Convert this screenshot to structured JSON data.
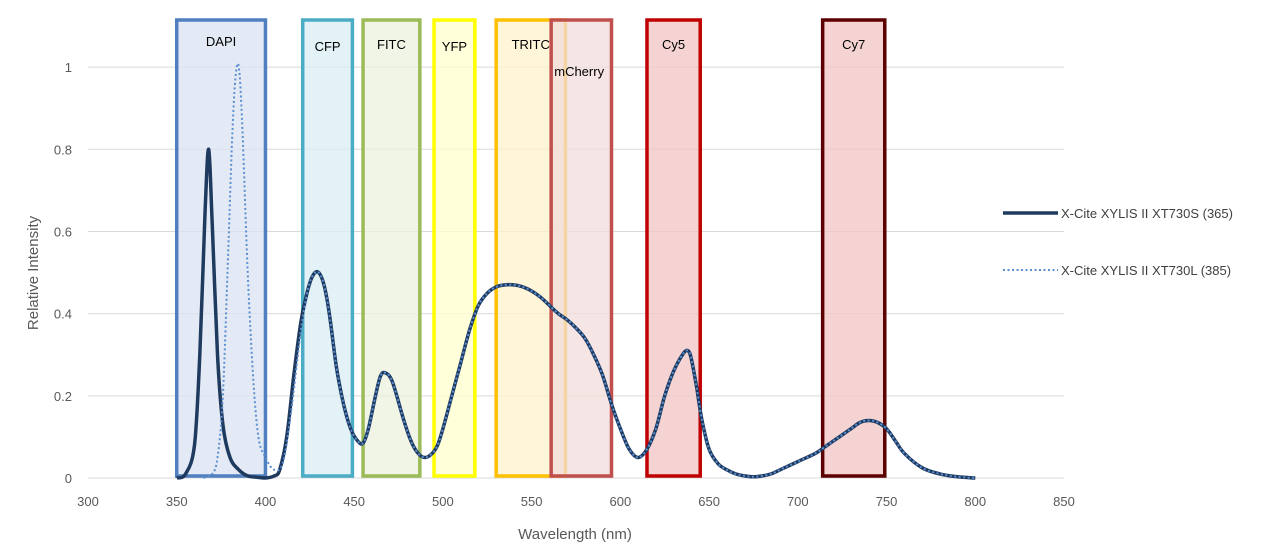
{
  "chart_data": {
    "type": "line",
    "title": "",
    "xlabel": "Wavelength (nm)",
    "ylabel": "Relative Intensity",
    "xlim": [
      300,
      850
    ],
    "ylim": [
      0,
      1.1
    ],
    "xticks": [
      300,
      350,
      400,
      450,
      500,
      550,
      600,
      650,
      700,
      750,
      800,
      850
    ],
    "yticks": [
      0,
      0.2,
      0.4,
      0.6,
      0.8,
      1
    ],
    "ytick_labels": [
      "0",
      "0.2",
      "0.4",
      "0.6",
      "0.8",
      "1"
    ],
    "grid": "horizontal",
    "legend_position": "right",
    "series": [
      {
        "name": "X-Cite XYLIS II XT730S (365)",
        "style": "solid",
        "color": "#1f3a5f",
        "x": [
          350,
          355,
          360,
          363,
          366,
          368,
          370,
          373,
          376,
          380,
          385,
          390,
          395,
          400,
          405,
          408,
          412,
          416,
          420,
          424,
          427,
          430,
          433,
          436,
          440,
          444,
          448,
          452,
          455,
          458,
          462,
          465,
          468,
          471,
          474,
          478,
          482,
          486,
          490,
          494,
          497,
          500,
          505,
          510,
          515,
          520,
          525,
          530,
          535,
          540,
          545,
          550,
          555,
          560,
          565,
          570,
          575,
          580,
          585,
          590,
          595,
          600,
          605,
          610,
          615,
          620,
          625,
          630,
          635,
          638,
          640,
          643,
          646,
          650,
          655,
          660,
          665,
          670,
          675,
          680,
          685,
          690,
          700,
          710,
          715,
          720,
          725,
          730,
          735,
          740,
          745,
          750,
          755,
          760,
          770,
          780,
          790,
          800
        ],
        "y": [
          0.0,
          0.01,
          0.08,
          0.3,
          0.65,
          0.8,
          0.62,
          0.3,
          0.13,
          0.05,
          0.02,
          0.005,
          0.002,
          0.0,
          0.005,
          0.02,
          0.1,
          0.25,
          0.38,
          0.46,
          0.495,
          0.5,
          0.47,
          0.4,
          0.27,
          0.18,
          0.12,
          0.09,
          0.085,
          0.12,
          0.2,
          0.25,
          0.255,
          0.24,
          0.2,
          0.14,
          0.09,
          0.06,
          0.05,
          0.06,
          0.08,
          0.12,
          0.2,
          0.28,
          0.36,
          0.42,
          0.45,
          0.465,
          0.47,
          0.47,
          0.465,
          0.455,
          0.44,
          0.42,
          0.4,
          0.385,
          0.365,
          0.34,
          0.3,
          0.25,
          0.18,
          0.12,
          0.07,
          0.05,
          0.07,
          0.12,
          0.2,
          0.26,
          0.3,
          0.31,
          0.29,
          0.22,
          0.14,
          0.07,
          0.035,
          0.02,
          0.01,
          0.005,
          0.003,
          0.005,
          0.01,
          0.02,
          0.04,
          0.06,
          0.075,
          0.09,
          0.105,
          0.12,
          0.135,
          0.14,
          0.135,
          0.12,
          0.09,
          0.06,
          0.025,
          0.01,
          0.003,
          0.0
        ]
      },
      {
        "name": "X-Cite XYLIS II XT730L (385)",
        "style": "dotted",
        "color": "#5b8fd1",
        "x": [
          365,
          370,
          373,
          376,
          379,
          381,
          383,
          385,
          387,
          390,
          393,
          396,
          400,
          405,
          410,
          415,
          420,
          424,
          427,
          430,
          433,
          436,
          440,
          444,
          448,
          452,
          455,
          458,
          462,
          465,
          468,
          471,
          474,
          478,
          482,
          486,
          490,
          494,
          497,
          500,
          505,
          510,
          515,
          520,
          525,
          530,
          535,
          540,
          545,
          550,
          555,
          560,
          565,
          570,
          575,
          580,
          585,
          590,
          595,
          600,
          605,
          610,
          615,
          620,
          625,
          630,
          635,
          638,
          640,
          643,
          646,
          650,
          655,
          660,
          665,
          670,
          675,
          680,
          685,
          690,
          700,
          710,
          715,
          720,
          725,
          730,
          735,
          740,
          745,
          750,
          755,
          760,
          770,
          780,
          790,
          800
        ],
        "y": [
          0.0,
          0.01,
          0.05,
          0.2,
          0.55,
          0.8,
          0.97,
          1.0,
          0.85,
          0.5,
          0.25,
          0.1,
          0.05,
          0.02,
          0.04,
          0.18,
          0.36,
          0.46,
          0.495,
          0.5,
          0.47,
          0.4,
          0.27,
          0.18,
          0.12,
          0.09,
          0.085,
          0.12,
          0.2,
          0.25,
          0.255,
          0.24,
          0.2,
          0.14,
          0.09,
          0.06,
          0.05,
          0.06,
          0.08,
          0.12,
          0.2,
          0.28,
          0.36,
          0.42,
          0.45,
          0.465,
          0.47,
          0.47,
          0.465,
          0.455,
          0.44,
          0.42,
          0.4,
          0.385,
          0.365,
          0.34,
          0.3,
          0.25,
          0.18,
          0.12,
          0.07,
          0.05,
          0.07,
          0.12,
          0.2,
          0.26,
          0.3,
          0.31,
          0.29,
          0.22,
          0.14,
          0.07,
          0.035,
          0.02,
          0.01,
          0.005,
          0.003,
          0.005,
          0.01,
          0.02,
          0.04,
          0.06,
          0.075,
          0.09,
          0.105,
          0.12,
          0.135,
          0.14,
          0.135,
          0.12,
          0.09,
          0.06,
          0.025,
          0.01,
          0.003,
          0.0
        ]
      }
    ],
    "bands": [
      {
        "label": "DAPI",
        "x0": 350,
        "x1": 400,
        "border": "#4f7fbf",
        "fill": "#dbe3f1"
      },
      {
        "label": "CFP",
        "x0": 421,
        "x1": 449,
        "border": "#4bacc6",
        "fill": "#daeef3"
      },
      {
        "label": "FITC",
        "x0": 455,
        "x1": 487,
        "border": "#9bbb59",
        "fill": "#ebf1de"
      },
      {
        "label": "YFP",
        "x0": 495,
        "x1": 518,
        "border": "#ffff00",
        "fill": "#ffffcc"
      },
      {
        "label": "TRITC",
        "x0": 530,
        "x1": 569,
        "border": "#ffc000",
        "fill": "#fff2cc"
      },
      {
        "label": "mCherry",
        "x0": 561,
        "x1": 595,
        "border": "#c0504d",
        "fill": "#f2dcdb"
      },
      {
        "label": "Cy5",
        "x0": 615,
        "x1": 645,
        "border": "#c00000",
        "fill": "#f2c4c4"
      },
      {
        "label": "Cy7",
        "x0": 714,
        "x1": 749,
        "border": "#5c0000",
        "fill": "#f2c4c4"
      }
    ]
  }
}
